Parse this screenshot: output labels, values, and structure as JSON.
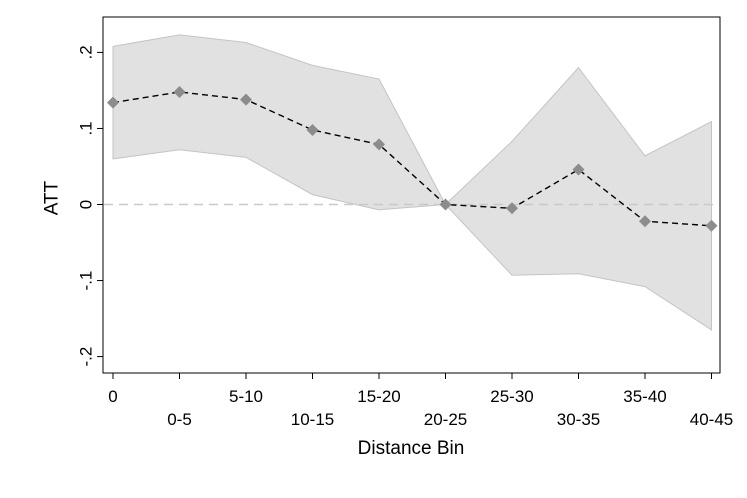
{
  "chart_data": {
    "type": "line",
    "title": "",
    "xlabel": "Distance Bin",
    "ylabel": "ATT",
    "x": [
      "0",
      "0-5",
      "5-10",
      "10-15",
      "15-20",
      "20-25",
      "25-30",
      "30-35",
      "35-40",
      "40-45"
    ],
    "series": [
      {
        "name": "ATT",
        "values": [
          0.134,
          0.148,
          0.138,
          0.098,
          0.079,
          0.0,
          -0.005,
          0.046,
          -0.022,
          -0.028
        ],
        "ci_upper": [
          0.208,
          0.223,
          0.213,
          0.183,
          0.165,
          0.0,
          0.083,
          0.18,
          0.064,
          0.109
        ],
        "ci_lower": [
          0.06,
          0.072,
          0.062,
          0.013,
          -0.007,
          0.0,
          -0.093,
          -0.091,
          -0.108,
          -0.165
        ]
      }
    ],
    "reference_line": 0,
    "y_ticks": [
      {
        "value": -0.2,
        "label": "-.2"
      },
      {
        "value": -0.1,
        "label": "-.1"
      },
      {
        "value": 0,
        "label": "0"
      },
      {
        "value": 0.1,
        "label": ".1"
      },
      {
        "value": 0.2,
        "label": ".2"
      }
    ],
    "ylim": [
      -0.215,
      0.24
    ],
    "colors": {
      "ci_fill": "#e1e1e1",
      "ci_edge": "#c4c4c4",
      "line": "#000000",
      "marker": "#8c8c8c",
      "reference": "#c9c9c9",
      "axis": "#000000",
      "frame": "#000000"
    }
  }
}
